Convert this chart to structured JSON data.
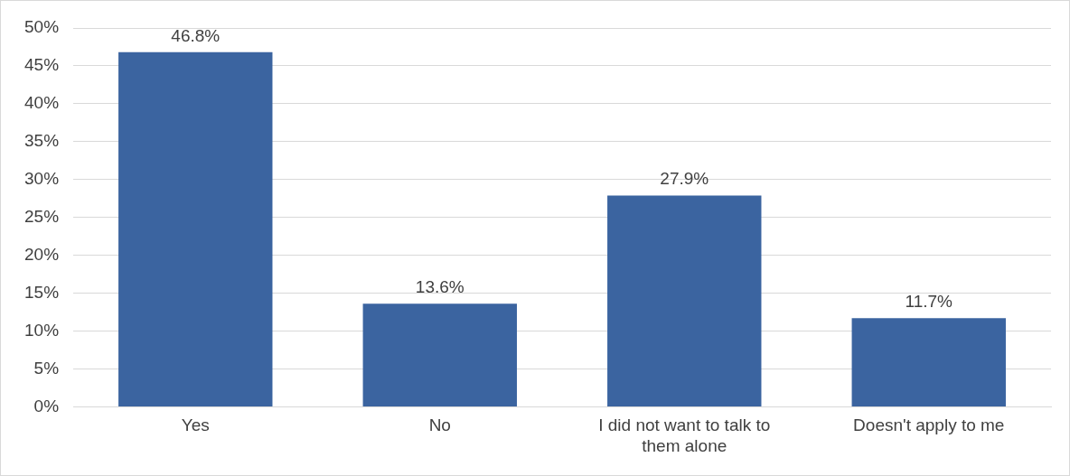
{
  "chart_data": {
    "type": "bar",
    "categories": [
      "Yes",
      "No",
      "I did not want to talk to them alone",
      "Doesn't apply to me"
    ],
    "values": [
      46.8,
      13.6,
      27.9,
      11.7
    ],
    "value_labels": [
      "46.8%",
      "13.6%",
      "27.9%",
      "11.7%"
    ],
    "color": "#3b64a0",
    "ylim": [
      0,
      50
    ],
    "yticks": [
      {
        "value": 0,
        "label": "0%"
      },
      {
        "value": 5,
        "label": "5%"
      },
      {
        "value": 10,
        "label": "10%"
      },
      {
        "value": 15,
        "label": "15%"
      },
      {
        "value": 20,
        "label": "20%"
      },
      {
        "value": 25,
        "label": "25%"
      },
      {
        "value": 30,
        "label": "30%"
      },
      {
        "value": 35,
        "label": "35%"
      },
      {
        "value": 40,
        "label": "40%"
      },
      {
        "value": 45,
        "label": "45%"
      },
      {
        "value": 50,
        "label": "50%"
      }
    ],
    "grid": "y",
    "legend": false
  }
}
